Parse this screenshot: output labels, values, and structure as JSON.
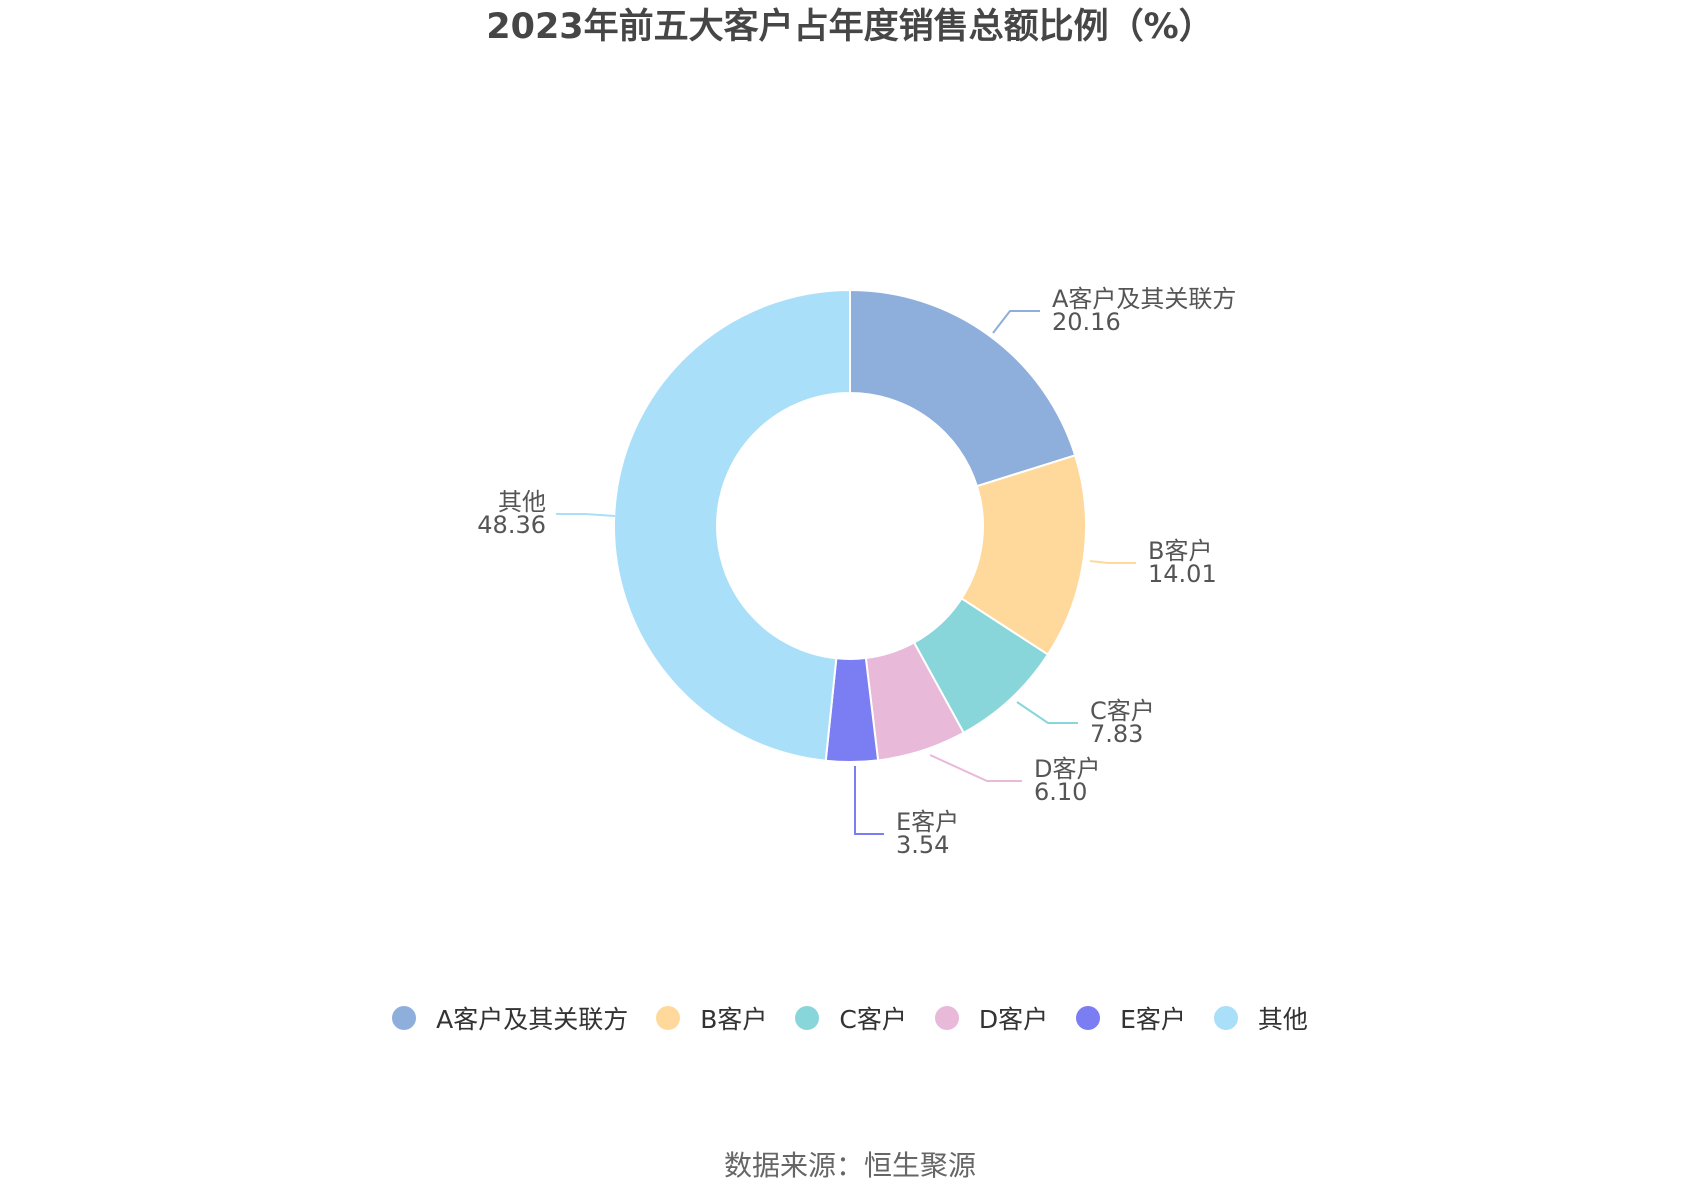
{
  "chart_data": {
    "type": "pie",
    "variant": "donut",
    "title": "2023年前五大客户占年度销售总额比例（%）",
    "slices": [
      {
        "name": "A客户及其关联方",
        "value": 20.16,
        "value_label": "20.16",
        "color": "#8eaedb"
      },
      {
        "name": "B客户",
        "value": 14.01,
        "value_label": "14.01",
        "color": "#ffd99b"
      },
      {
        "name": "C客户",
        "value": 7.83,
        "value_label": "7.83",
        "color": "#88d6d9"
      },
      {
        "name": "D客户",
        "value": 6.1,
        "value_label": "6.10",
        "color": "#e8b9d9"
      },
      {
        "name": "E客户",
        "value": 3.54,
        "value_label": "3.54",
        "color": "#7b7ef2"
      },
      {
        "name": "其他",
        "value": 48.36,
        "value_label": "48.36",
        "color": "#a9dff9"
      }
    ],
    "legend_position": "bottom"
  },
  "source": "数据来源：恒生聚源"
}
